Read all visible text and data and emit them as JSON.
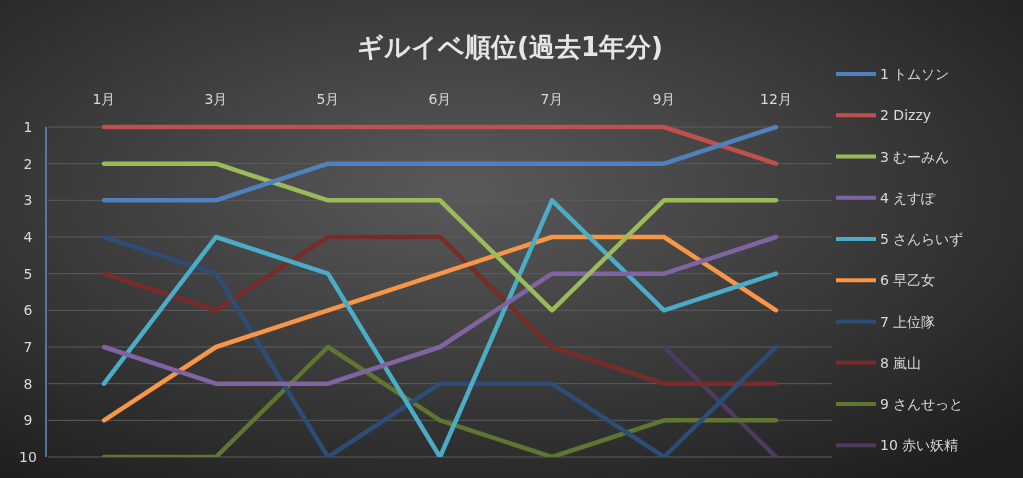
{
  "chart_data": {
    "type": "line",
    "title": "ギルイベ順位(過去1年分)",
    "categories": [
      "1月",
      "3月",
      "5月",
      "6月",
      "7月",
      "9月",
      "12月"
    ],
    "ylim": [
      10,
      1
    ],
    "yticks": [
      1,
      2,
      3,
      4,
      5,
      6,
      7,
      8,
      9,
      10
    ],
    "grid": "y",
    "legend": "right",
    "series": [
      {
        "name": "1 トムソン",
        "color": "#4f81bd",
        "values": [
          3,
          3,
          2,
          2,
          2,
          2,
          1
        ]
      },
      {
        "name": "2 Dizzy",
        "color": "#c0504d",
        "values": [
          1,
          1,
          1,
          1,
          1,
          1,
          2
        ]
      },
      {
        "name": "3 むーみん",
        "color": "#9bbb59",
        "values": [
          2,
          2,
          3,
          3,
          6,
          3,
          3
        ]
      },
      {
        "name": "4 えすぽ",
        "color": "#8064a2",
        "values": [
          7,
          8,
          8,
          7,
          5,
          5,
          4
        ]
      },
      {
        "name": "5 さんらいず",
        "color": "#4bacc6",
        "values": [
          8,
          4,
          5,
          10,
          3,
          6,
          5
        ]
      },
      {
        "name": "6 早乙女",
        "color": "#f79646",
        "values": [
          9,
          7,
          6,
          5,
          4,
          4,
          6
        ]
      },
      {
        "name": "7 上位隊",
        "color": "#2c4d75",
        "values": [
          4,
          5,
          10,
          8,
          8,
          10,
          7
        ]
      },
      {
        "name": "8 嵐山",
        "color": "#772c2a",
        "values": [
          5,
          6,
          4,
          4,
          7,
          8,
          8
        ]
      },
      {
        "name": "9 さんせっと",
        "color": "#5f7530",
        "values": [
          10,
          10,
          7,
          9,
          10,
          9,
          9
        ]
      },
      {
        "name": "10 赤い妖精",
        "color": "#4d3b62",
        "values": [
          null,
          null,
          null,
          null,
          null,
          7,
          10
        ]
      }
    ]
  }
}
